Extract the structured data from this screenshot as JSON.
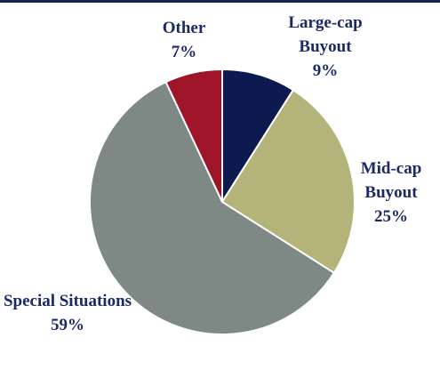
{
  "chart_data": {
    "type": "pie",
    "categories": [
      "Large-cap Buyout",
      "Mid-cap Buyout",
      "Special Situations",
      "Other"
    ],
    "values": [
      9,
      25,
      59,
      7
    ],
    "value_labels": [
      "9%",
      "25%",
      "59%",
      "7%"
    ],
    "colors": [
      "#0c1a50",
      "#b4b47a",
      "#7e8884",
      "#9e1428"
    ]
  }
}
